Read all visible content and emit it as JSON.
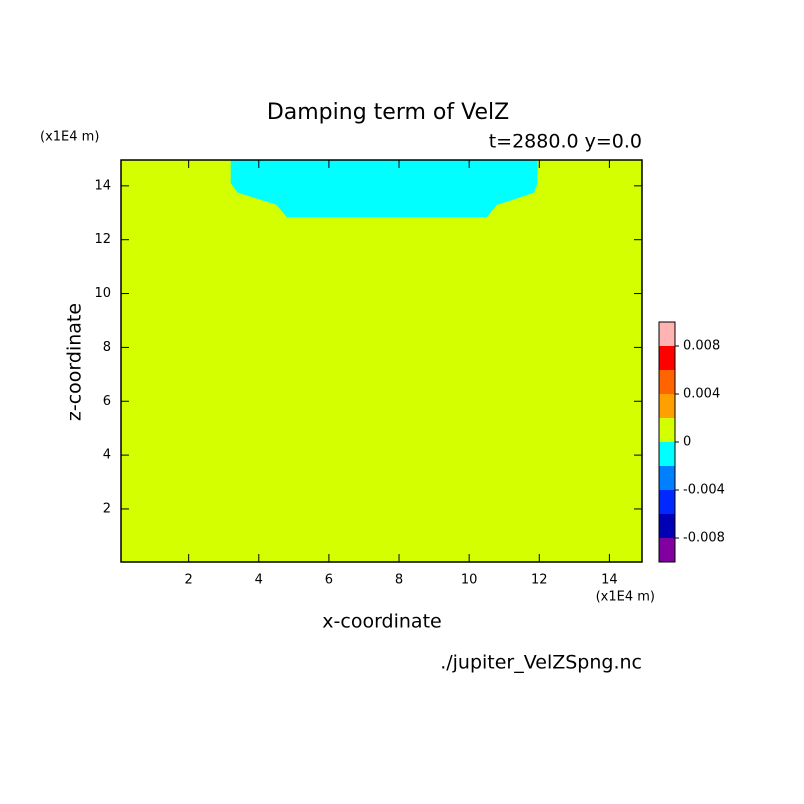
{
  "chart_data": {
    "type": "filled-contour",
    "title": "Damping term of VelZ",
    "subtitle": "t=2880.0 y=0.0",
    "x_label": "x-coordinate",
    "y_label": "z-coordinate",
    "y_unit": "(x1E4 m)",
    "x_unit": "(x1E4 m)",
    "source": "./jupiter_VelZSpng.nc",
    "xlim": [
      0.07,
      14.93
    ],
    "ylim": [
      0.03,
      14.96
    ],
    "xticks": [
      2,
      4,
      6,
      8,
      10,
      12,
      14
    ],
    "yticks": [
      2,
      4,
      6,
      8,
      10,
      12,
      14
    ],
    "background_color": "#d4ff00",
    "regions": [
      {
        "color": "#00ffff",
        "x": [
          3.2,
          3.2,
          3.4,
          4.0,
          4.5,
          4.8,
          10.5,
          10.8,
          11.3,
          11.85,
          11.95,
          11.95
        ],
        "z": [
          14.96,
          14.1,
          13.75,
          13.5,
          13.3,
          12.84,
          12.84,
          13.3,
          13.5,
          13.75,
          14.1,
          14.96
        ]
      }
    ],
    "colorbar": {
      "levels": [
        -0.01,
        -0.008,
        -0.006,
        -0.004,
        -0.002,
        0,
        0.002,
        0.004,
        0.006,
        0.008,
        0.01
      ],
      "colors": [
        "#8000a0",
        "#0000b4",
        "#0028ff",
        "#0080ff",
        "#00ffff",
        "#d4ff00",
        "#ffa000",
        "#ff6400",
        "#ff0000",
        "#ffb4b4"
      ],
      "ticks": [
        -0.008,
        -0.004,
        0,
        0.004,
        0.008
      ]
    }
  }
}
